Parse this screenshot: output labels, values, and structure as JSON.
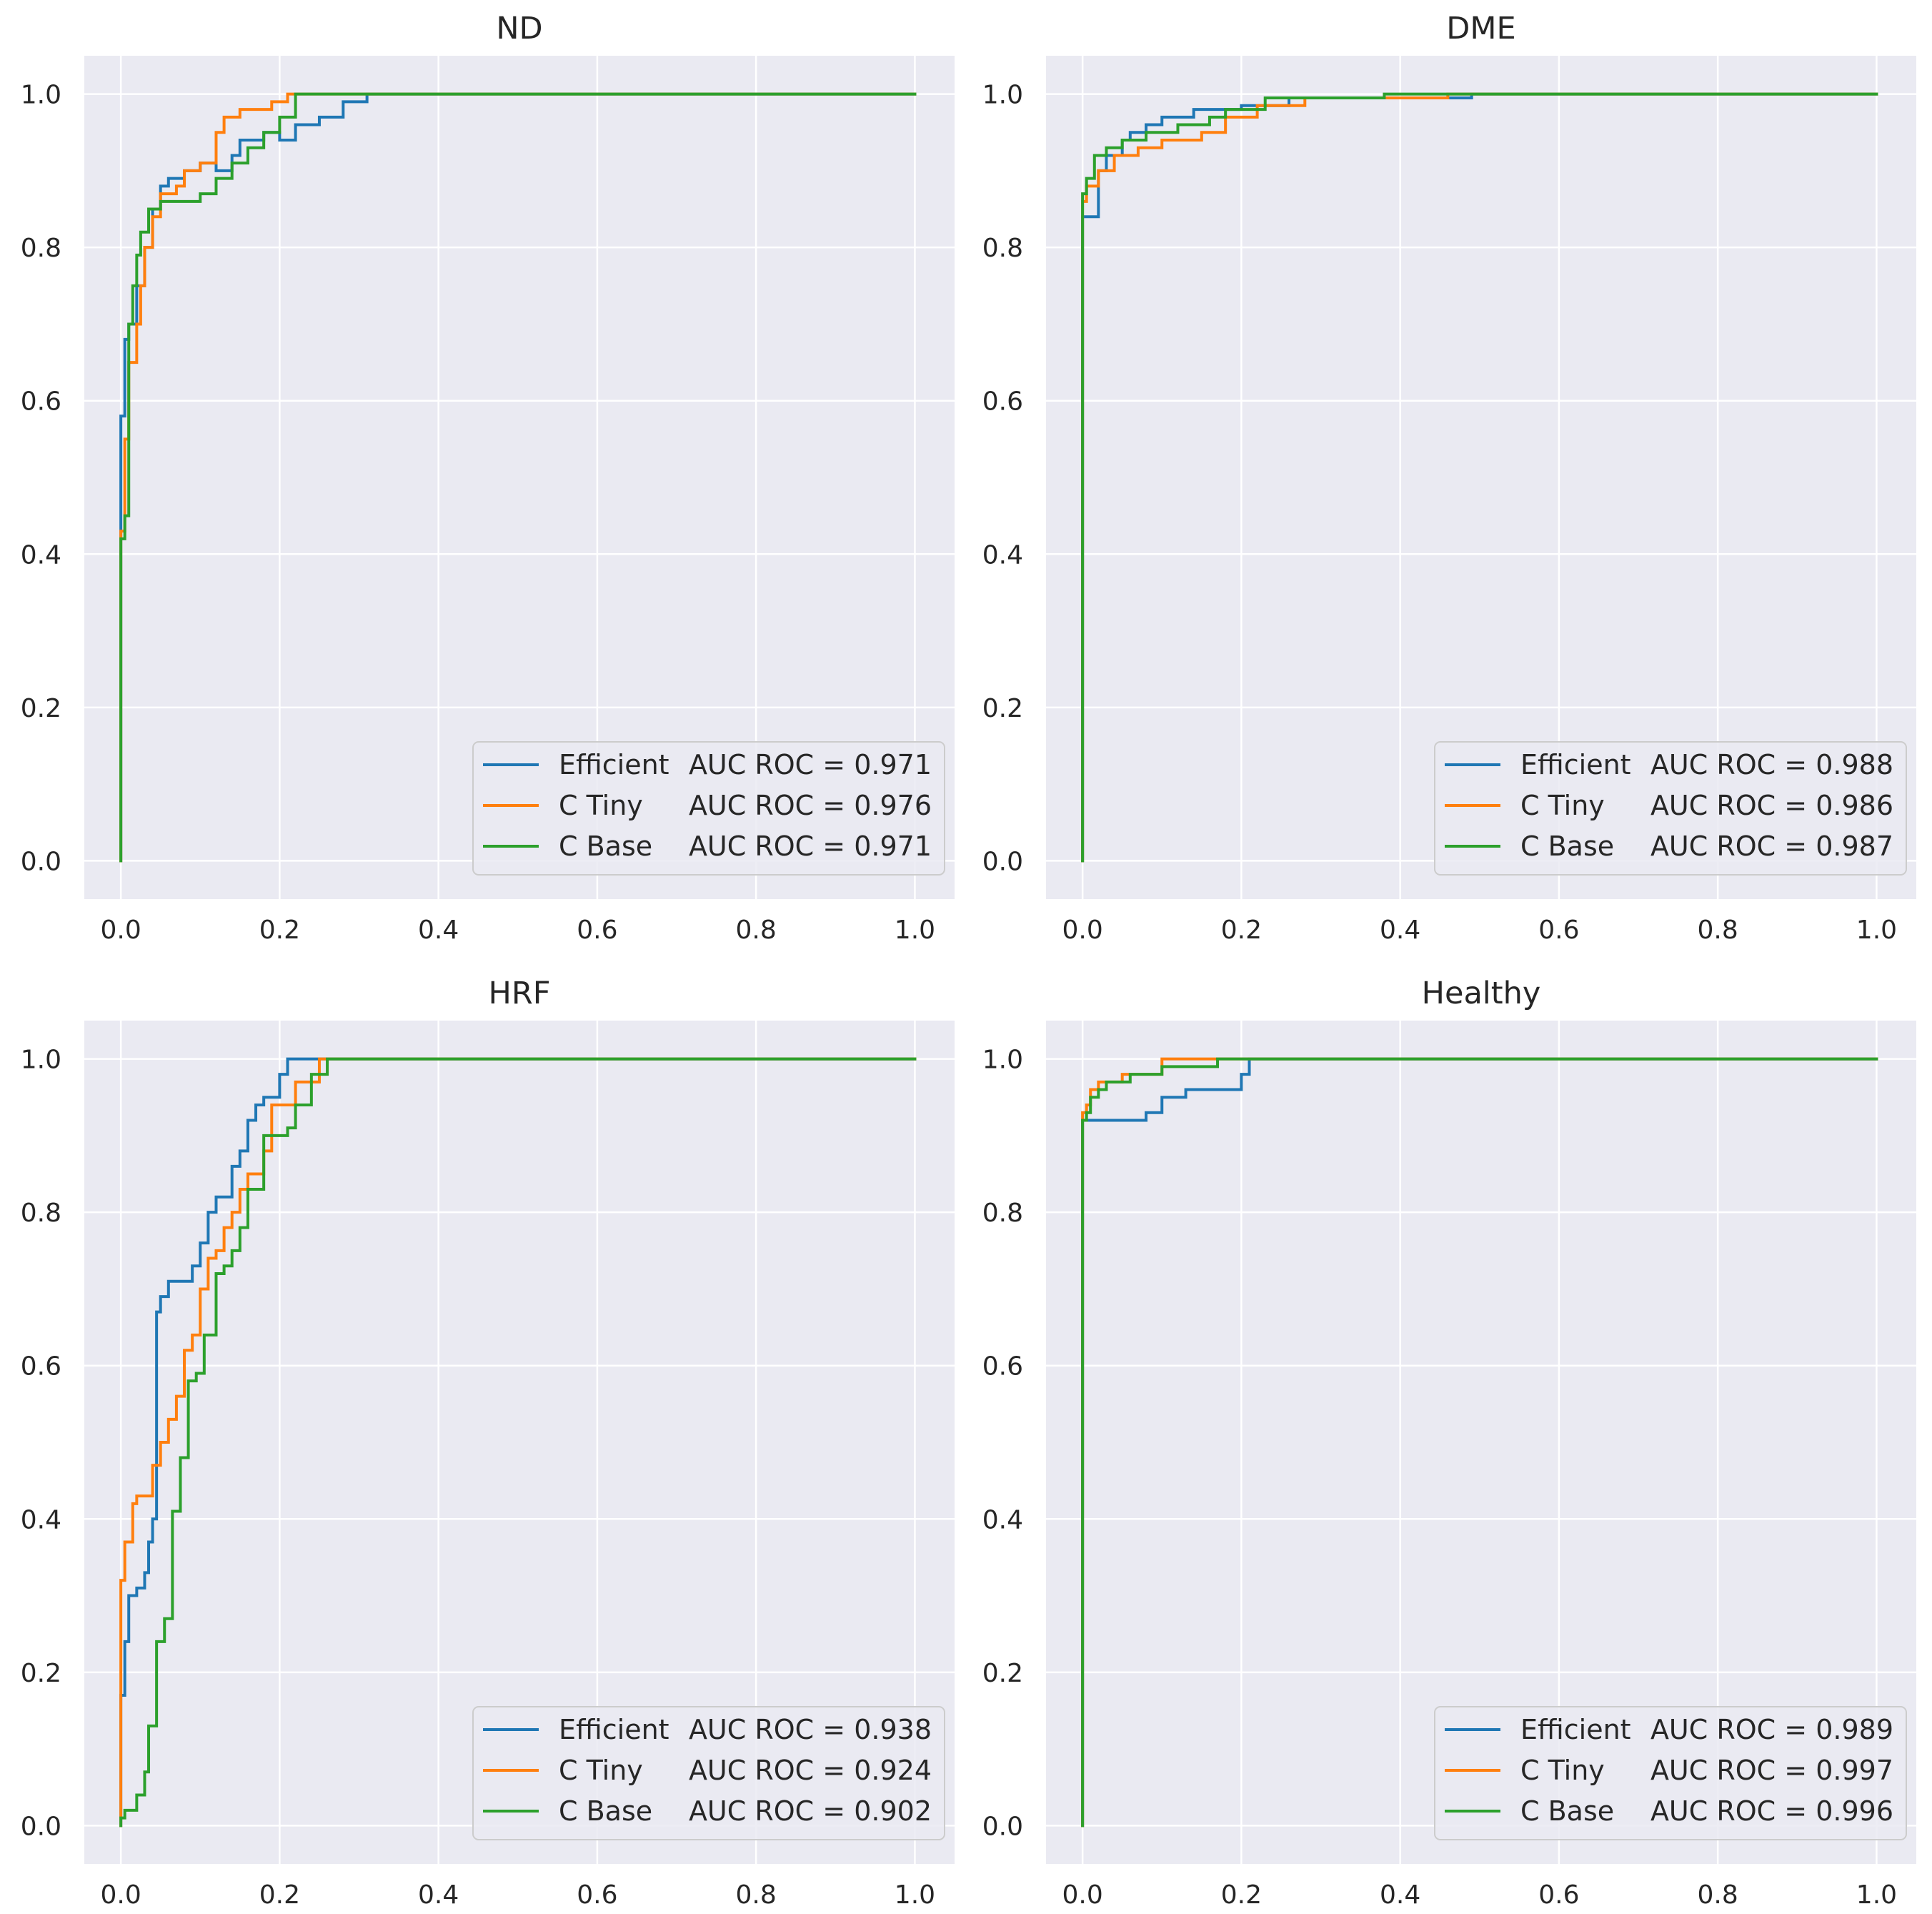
{
  "chart_data": [
    {
      "type": "line",
      "title": "ND",
      "xlabel": "",
      "ylabel": "",
      "xlim": [
        -0.046,
        1.05
      ],
      "ylim": [
        -0.05,
        1.05
      ],
      "xticks": [
        "0.0",
        "0.2",
        "0.4",
        "0.6",
        "0.8",
        "1.0"
      ],
      "yticks": [
        "0.0",
        "0.2",
        "0.4",
        "0.6",
        "0.8",
        "1.0"
      ],
      "grid": true,
      "legend_position": "lower-right",
      "series": [
        {
          "name": "Efficient",
          "auc_label": "AUC ROC =  0.971",
          "color": "#1f77b4",
          "x": [
            0,
            0,
            0.005,
            0.005,
            0.01,
            0.01,
            0.02,
            0.02,
            0.03,
            0.03,
            0.04,
            0.04,
            0.05,
            0.05,
            0.06,
            0.06,
            0.08,
            0.08,
            0.1,
            0.1,
            0.12,
            0.12,
            0.14,
            0.14,
            0.15,
            0.15,
            0.18,
            0.18,
            0.2,
            0.2,
            0.22,
            0.22,
            0.25,
            0.25,
            0.28,
            0.28,
            0.31,
            0.31,
            1.0
          ],
          "y": [
            0,
            0.58,
            0.58,
            0.68,
            0.68,
            0.7,
            0.7,
            0.75,
            0.75,
            0.8,
            0.8,
            0.85,
            0.85,
            0.88,
            0.88,
            0.89,
            0.89,
            0.9,
            0.9,
            0.91,
            0.91,
            0.9,
            0.9,
            0.92,
            0.92,
            0.94,
            0.94,
            0.95,
            0.95,
            0.94,
            0.94,
            0.96,
            0.96,
            0.97,
            0.97,
            0.99,
            0.99,
            1.0,
            1.0
          ]
        },
        {
          "name": "C Tiny",
          "auc_label": "AUC ROC =  0.976",
          "color": "#ff7f0e",
          "x": [
            0,
            0,
            0.005,
            0.005,
            0.01,
            0.01,
            0.02,
            0.02,
            0.025,
            0.025,
            0.03,
            0.03,
            0.04,
            0.04,
            0.05,
            0.05,
            0.07,
            0.07,
            0.08,
            0.08,
            0.1,
            0.1,
            0.12,
            0.12,
            0.13,
            0.13,
            0.15,
            0.15,
            0.19,
            0.19,
            0.21,
            0.21,
            1.0
          ],
          "y": [
            0,
            0.43,
            0.43,
            0.55,
            0.55,
            0.65,
            0.65,
            0.7,
            0.7,
            0.75,
            0.75,
            0.8,
            0.8,
            0.84,
            0.84,
            0.87,
            0.87,
            0.88,
            0.88,
            0.9,
            0.9,
            0.91,
            0.91,
            0.95,
            0.95,
            0.97,
            0.97,
            0.98,
            0.98,
            0.99,
            0.99,
            1.0,
            1.0
          ]
        },
        {
          "name": "C Base",
          "auc_label": "AUC ROC =  0.971",
          "color": "#2ca02c",
          "x": [
            0,
            0,
            0.005,
            0.005,
            0.01,
            0.01,
            0.015,
            0.015,
            0.02,
            0.02,
            0.025,
            0.025,
            0.035,
            0.035,
            0.05,
            0.05,
            0.1,
            0.1,
            0.12,
            0.12,
            0.14,
            0.14,
            0.16,
            0.16,
            0.18,
            0.18,
            0.2,
            0.2,
            0.22,
            0.22,
            1.0
          ],
          "y": [
            0,
            0.42,
            0.42,
            0.45,
            0.45,
            0.7,
            0.7,
            0.75,
            0.75,
            0.79,
            0.79,
            0.82,
            0.82,
            0.85,
            0.85,
            0.86,
            0.86,
            0.87,
            0.87,
            0.89,
            0.89,
            0.91,
            0.91,
            0.93,
            0.93,
            0.95,
            0.95,
            0.97,
            0.97,
            1.0,
            1.0
          ]
        }
      ],
      "legend_entries": [
        {
          "name": "Efficient",
          "auc": "AUC ROC =  0.971"
        },
        {
          "name": "C Tiny",
          "auc": "AUC ROC =  0.976"
        },
        {
          "name": "C Base",
          "auc": "AUC ROC =  0.971"
        }
      ]
    },
    {
      "type": "line",
      "title": "DME",
      "xlabel": "",
      "ylabel": "",
      "xlim": [
        -0.046,
        1.05
      ],
      "ylim": [
        -0.05,
        1.05
      ],
      "xticks": [
        "0.0",
        "0.2",
        "0.4",
        "0.6",
        "0.8",
        "1.0"
      ],
      "yticks": [
        "0.0",
        "0.2",
        "0.4",
        "0.6",
        "0.8",
        "1.0"
      ],
      "grid": true,
      "legend_position": "lower-right",
      "series": [
        {
          "name": "Efficient",
          "auc_label": "AUC ROC =  0.988",
          "color": "#1f77b4",
          "x": [
            0,
            0,
            0.02,
            0.02,
            0.03,
            0.03,
            0.05,
            0.05,
            0.06,
            0.06,
            0.08,
            0.08,
            0.1,
            0.1,
            0.14,
            0.14,
            0.2,
            0.2,
            0.26,
            0.26,
            0.4,
            0.4,
            0.49,
            0.49,
            1.0
          ],
          "y": [
            0,
            0.84,
            0.84,
            0.9,
            0.9,
            0.92,
            0.92,
            0.94,
            0.94,
            0.95,
            0.95,
            0.96,
            0.96,
            0.97,
            0.97,
            0.98,
            0.98,
            0.985,
            0.985,
            0.995,
            0.995,
            0.995,
            0.995,
            1.0,
            1.0
          ]
        },
        {
          "name": "C Tiny",
          "auc_label": "AUC ROC =  0.986",
          "color": "#ff7f0e",
          "x": [
            0,
            0,
            0.005,
            0.005,
            0.02,
            0.02,
            0.04,
            0.04,
            0.07,
            0.07,
            0.1,
            0.1,
            0.15,
            0.15,
            0.18,
            0.18,
            0.22,
            0.22,
            0.28,
            0.28,
            0.4,
            0.4,
            0.46,
            0.46,
            1.0
          ],
          "y": [
            0,
            0.86,
            0.86,
            0.88,
            0.88,
            0.9,
            0.9,
            0.92,
            0.92,
            0.93,
            0.93,
            0.94,
            0.94,
            0.95,
            0.95,
            0.97,
            0.97,
            0.985,
            0.985,
            0.995,
            0.995,
            0.995,
            0.995,
            1.0,
            1.0
          ]
        },
        {
          "name": "C Base",
          "auc_label": "AUC ROC =  0.987",
          "color": "#2ca02c",
          "x": [
            0,
            0,
            0.005,
            0.005,
            0.015,
            0.015,
            0.03,
            0.03,
            0.05,
            0.05,
            0.08,
            0.08,
            0.12,
            0.12,
            0.16,
            0.16,
            0.18,
            0.18,
            0.23,
            0.23,
            0.38,
            0.38,
            1.0
          ],
          "y": [
            0,
            0.87,
            0.87,
            0.89,
            0.89,
            0.92,
            0.92,
            0.93,
            0.93,
            0.94,
            0.94,
            0.95,
            0.95,
            0.96,
            0.96,
            0.97,
            0.97,
            0.98,
            0.98,
            0.995,
            0.995,
            1.0,
            1.0
          ]
        }
      ],
      "legend_entries": [
        {
          "name": "Efficient",
          "auc": "AUC ROC =  0.988"
        },
        {
          "name": "C Tiny",
          "auc": "AUC ROC =  0.986"
        },
        {
          "name": "C Base",
          "auc": "AUC ROC =  0.987"
        }
      ]
    },
    {
      "type": "line",
      "title": "HRF",
      "xlabel": "",
      "ylabel": "",
      "xlim": [
        -0.046,
        1.05
      ],
      "ylim": [
        -0.05,
        1.05
      ],
      "xticks": [
        "0.0",
        "0.2",
        "0.4",
        "0.6",
        "0.8",
        "1.0"
      ],
      "yticks": [
        "0.0",
        "0.2",
        "0.4",
        "0.6",
        "0.8",
        "1.0"
      ],
      "grid": true,
      "legend_position": "lower-right",
      "series": [
        {
          "name": "Efficient",
          "auc_label": "AUC ROC =  0.938",
          "color": "#1f77b4",
          "x": [
            0,
            0,
            0.005,
            0.005,
            0.01,
            0.01,
            0.02,
            0.02,
            0.03,
            0.03,
            0.035,
            0.035,
            0.04,
            0.04,
            0.045,
            0.045,
            0.05,
            0.05,
            0.06,
            0.06,
            0.09,
            0.09,
            0.1,
            0.1,
            0.11,
            0.11,
            0.12,
            0.12,
            0.14,
            0.14,
            0.15,
            0.15,
            0.16,
            0.16,
            0.17,
            0.17,
            0.18,
            0.18,
            0.2,
            0.2,
            0.21,
            0.21,
            1.0
          ],
          "y": [
            0,
            0.17,
            0.17,
            0.24,
            0.24,
            0.3,
            0.3,
            0.31,
            0.31,
            0.33,
            0.33,
            0.37,
            0.37,
            0.4,
            0.4,
            0.67,
            0.67,
            0.69,
            0.69,
            0.71,
            0.71,
            0.73,
            0.73,
            0.76,
            0.76,
            0.8,
            0.8,
            0.82,
            0.82,
            0.86,
            0.86,
            0.88,
            0.88,
            0.92,
            0.92,
            0.94,
            0.94,
            0.95,
            0.95,
            0.98,
            0.98,
            1.0,
            1.0
          ]
        },
        {
          "name": "C Tiny",
          "auc_label": "AUC ROC =  0.924",
          "color": "#ff7f0e",
          "x": [
            0,
            0,
            0.005,
            0.005,
            0.015,
            0.015,
            0.02,
            0.02,
            0.04,
            0.04,
            0.05,
            0.05,
            0.06,
            0.06,
            0.07,
            0.07,
            0.08,
            0.08,
            0.09,
            0.09,
            0.1,
            0.1,
            0.11,
            0.11,
            0.12,
            0.12,
            0.13,
            0.13,
            0.14,
            0.14,
            0.15,
            0.15,
            0.16,
            0.16,
            0.18,
            0.18,
            0.19,
            0.19,
            0.22,
            0.22,
            0.25,
            0.25,
            1.0
          ],
          "y": [
            0,
            0.32,
            0.32,
            0.37,
            0.37,
            0.42,
            0.42,
            0.43,
            0.43,
            0.47,
            0.47,
            0.5,
            0.5,
            0.53,
            0.53,
            0.56,
            0.56,
            0.62,
            0.62,
            0.64,
            0.64,
            0.7,
            0.7,
            0.74,
            0.74,
            0.75,
            0.75,
            0.78,
            0.78,
            0.8,
            0.8,
            0.83,
            0.83,
            0.85,
            0.85,
            0.88,
            0.88,
            0.94,
            0.94,
            0.97,
            0.97,
            1.0,
            1.0
          ]
        },
        {
          "name": "C Base",
          "auc_label": "AUC ROC =  0.902",
          "color": "#2ca02c",
          "x": [
            0,
            0,
            0.005,
            0.005,
            0.02,
            0.02,
            0.03,
            0.03,
            0.035,
            0.035,
            0.045,
            0.045,
            0.055,
            0.055,
            0.065,
            0.065,
            0.075,
            0.075,
            0.085,
            0.085,
            0.095,
            0.095,
            0.105,
            0.105,
            0.12,
            0.12,
            0.13,
            0.13,
            0.14,
            0.14,
            0.15,
            0.15,
            0.16,
            0.16,
            0.18,
            0.18,
            0.21,
            0.21,
            0.22,
            0.22,
            0.24,
            0.24,
            0.26,
            0.26,
            1.0
          ],
          "y": [
            0,
            0.01,
            0.01,
            0.02,
            0.02,
            0.04,
            0.04,
            0.07,
            0.07,
            0.13,
            0.13,
            0.24,
            0.24,
            0.27,
            0.27,
            0.41,
            0.41,
            0.48,
            0.48,
            0.58,
            0.58,
            0.59,
            0.59,
            0.64,
            0.64,
            0.72,
            0.72,
            0.73,
            0.73,
            0.75,
            0.75,
            0.78,
            0.78,
            0.83,
            0.83,
            0.9,
            0.9,
            0.91,
            0.91,
            0.94,
            0.94,
            0.98,
            0.98,
            1.0,
            1.0
          ]
        }
      ],
      "legend_entries": [
        {
          "name": "Efficient",
          "auc": "AUC ROC =  0.938"
        },
        {
          "name": "C Tiny",
          "auc": "AUC ROC =  0.924"
        },
        {
          "name": "C Base",
          "auc": "AUC ROC =  0.902"
        }
      ]
    },
    {
      "type": "line",
      "title": "Healthy",
      "xlabel": "",
      "ylabel": "",
      "xlim": [
        -0.046,
        1.05
      ],
      "ylim": [
        -0.05,
        1.05
      ],
      "xticks": [
        "0.0",
        "0.2",
        "0.4",
        "0.6",
        "0.8",
        "1.0"
      ],
      "yticks": [
        "0.0",
        "0.2",
        "0.4",
        "0.6",
        "0.8",
        "1.0"
      ],
      "grid": true,
      "legend_position": "lower-right",
      "series": [
        {
          "name": "Efficient",
          "auc_label": "AUC ROC =  0.989",
          "color": "#1f77b4",
          "x": [
            0,
            0,
            0.01,
            0.01,
            0.08,
            0.08,
            0.1,
            0.1,
            0.13,
            0.13,
            0.2,
            0.2,
            0.21,
            0.21,
            1.0
          ],
          "y": [
            0,
            0.92,
            0.92,
            0.92,
            0.92,
            0.93,
            0.93,
            0.95,
            0.95,
            0.96,
            0.96,
            0.98,
            0.98,
            1.0,
            1.0
          ]
        },
        {
          "name": "C Tiny",
          "auc_label": "AUC ROC =  0.997",
          "color": "#ff7f0e",
          "x": [
            0,
            0,
            0.005,
            0.005,
            0.01,
            0.01,
            0.02,
            0.02,
            0.05,
            0.05,
            0.1,
            0.1,
            0.17,
            0.17,
            1.0
          ],
          "y": [
            0,
            0.93,
            0.93,
            0.94,
            0.94,
            0.96,
            0.96,
            0.97,
            0.97,
            0.98,
            0.98,
            1.0,
            1.0,
            1.0,
            1.0
          ]
        },
        {
          "name": "C Base",
          "auc_label": "AUC ROC =  0.996",
          "color": "#2ca02c",
          "x": [
            0,
            0,
            0.005,
            0.005,
            0.01,
            0.01,
            0.02,
            0.02,
            0.03,
            0.03,
            0.06,
            0.06,
            0.1,
            0.1,
            0.17,
            0.17,
            1.0
          ],
          "y": [
            0,
            0.92,
            0.92,
            0.93,
            0.93,
            0.95,
            0.95,
            0.96,
            0.96,
            0.97,
            0.97,
            0.98,
            0.98,
            0.99,
            0.99,
            1.0,
            1.0
          ]
        }
      ],
      "legend_entries": [
        {
          "name": "Efficient",
          "auc": "AUC ROC =  0.989"
        },
        {
          "name": "C Tiny",
          "auc": "AUC ROC =  0.997"
        },
        {
          "name": "C Base",
          "auc": "AUC ROC =  0.996"
        }
      ]
    }
  ]
}
